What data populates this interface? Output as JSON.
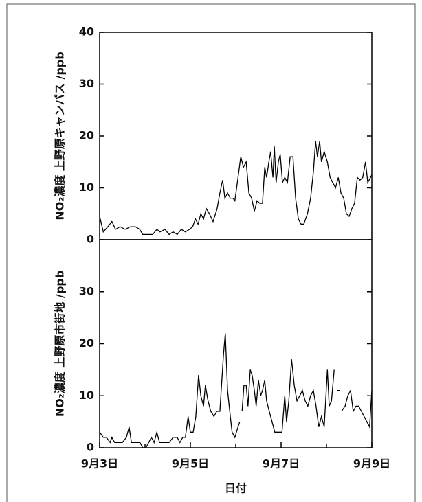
{
  "chart_data": [
    {
      "type": "line",
      "ylabel": "NO₂濃度 上野原キャンパス /ppb",
      "color": "#000000",
      "xlim": [
        3,
        9
      ],
      "ylim": [
        0,
        40
      ],
      "yticks": [
        0,
        10,
        20,
        30,
        40
      ],
      "x": [
        3.0,
        3.08,
        3.18,
        3.27,
        3.35,
        3.45,
        3.56,
        3.68,
        3.79,
        3.88,
        3.95,
        4.06,
        4.17,
        4.26,
        4.33,
        4.44,
        4.53,
        4.62,
        4.71,
        4.8,
        4.89,
        4.98,
        5.05,
        5.11,
        5.17,
        5.23,
        5.29,
        5.35,
        5.42,
        5.5,
        5.59,
        5.65,
        5.71,
        5.76,
        5.82,
        5.88,
        5.94,
        5.98,
        6.05,
        6.11,
        6.17,
        6.23,
        6.29,
        6.35,
        6.41,
        6.47,
        6.53,
        6.59,
        6.64,
        6.68,
        6.73,
        6.77,
        6.82,
        6.85,
        6.89,
        6.94,
        6.98,
        7.03,
        7.08,
        7.14,
        7.2,
        7.26,
        7.32,
        7.38,
        7.44,
        7.5,
        7.58,
        7.65,
        7.71,
        7.76,
        7.8,
        7.85,
        7.89,
        7.95,
        8.02,
        8.08,
        8.14,
        8.2,
        8.26,
        8.32,
        8.38,
        8.44,
        8.5,
        8.56,
        8.62,
        8.68,
        8.74,
        8.8,
        8.86,
        8.91,
        9.0
      ],
      "values": [
        4.5,
        1.5,
        2.5,
        3.5,
        2,
        2.5,
        2,
        2.5,
        2.5,
        2,
        1,
        1,
        1,
        2,
        1.5,
        2,
        1,
        1.5,
        1,
        2,
        1.5,
        2,
        2.5,
        4,
        3,
        5,
        4,
        6,
        5,
        3.5,
        6,
        9,
        11.5,
        8,
        9,
        8,
        8,
        7.5,
        12,
        16,
        14,
        15,
        9,
        8,
        5.5,
        7.5,
        7,
        7,
        14,
        12,
        15,
        17,
        12,
        18,
        11,
        15,
        16.5,
        11,
        12,
        11,
        16,
        16,
        8,
        4,
        3,
        3,
        5,
        8,
        13,
        19,
        16,
        19,
        15,
        17,
        15,
        12,
        11,
        10,
        12,
        9,
        8,
        5,
        4.5,
        6,
        7,
        12,
        11.5,
        12,
        15,
        11,
        12.5
      ]
    },
    {
      "type": "line",
      "ylabel": "NO₂濃度 上野原市街地 /ppb",
      "xlabel": "日付",
      "color": "#000000",
      "xlim": [
        3,
        9
      ],
      "ylim": [
        0,
        40
      ],
      "yticks": [
        0,
        10,
        20,
        30
      ],
      "xticks": [
        {
          "value": 3,
          "label": "9月3日"
        },
        {
          "value": 5,
          "label": "9月5日"
        },
        {
          "value": 7,
          "label": "9月7日"
        },
        {
          "value": 9,
          "label": "9月9日"
        }
      ],
      "xminorticks": [
        4,
        6,
        8
      ],
      "x": [
        3.0,
        3.08,
        3.15,
        3.23,
        3.27,
        3.33,
        3.41,
        3.5,
        3.59,
        3.65,
        3.7,
        3.77,
        3.83,
        3.89,
        3.95,
        4.02,
        4.08,
        4.14,
        4.2,
        4.26,
        4.32,
        4.38,
        4.44,
        4.53,
        4.62,
        4.71,
        4.77,
        4.83,
        4.89,
        4.95,
        5.0,
        5.06,
        5.12,
        5.18,
        5.23,
        5.29,
        5.33,
        5.39,
        5.45,
        5.52,
        5.58,
        5.65,
        5.73,
        5.77,
        5.82,
        5.88,
        5.92,
        5.98,
        6.05,
        6.09,
        6.1,
        6.14,
        6.18,
        6.23,
        6.27,
        6.32,
        6.36,
        6.41,
        6.45,
        6.5,
        6.55,
        6.59,
        6.64,
        6.68,
        6.74,
        6.8,
        6.86,
        6.94,
        7.02,
        7.08,
        7.12,
        7.17,
        7.23,
        7.29,
        7.35,
        7.41,
        7.47,
        7.53,
        7.59,
        7.65,
        7.71,
        7.77,
        7.83,
        7.89,
        7.95,
        8.02,
        8.06,
        8.11,
        8.17,
        8.2,
        8.23,
        8.29,
        8.31,
        8.33,
        8.41,
        8.47,
        8.53,
        8.59,
        8.65,
        8.71,
        8.77,
        8.83,
        8.89,
        8.95,
        9.0
      ],
      "values": [
        3,
        2,
        2,
        1,
        2,
        1,
        1,
        1,
        2,
        4,
        1,
        1,
        1,
        1,
        0,
        0,
        1,
        2,
        1,
        3,
        1,
        1,
        1,
        1,
        2,
        2,
        1,
        2,
        2,
        6,
        3,
        3,
        6,
        14,
        10,
        8,
        12,
        9,
        7,
        6,
        7,
        7,
        18,
        22,
        11,
        6,
        3,
        2,
        4,
        5,
        null,
        7,
        12,
        12,
        8,
        15,
        14,
        11,
        8,
        13,
        10,
        11,
        13,
        9,
        7,
        5,
        3,
        3,
        3,
        10,
        5,
        9,
        17,
        12,
        9,
        10,
        11,
        9,
        8,
        10,
        11,
        8,
        4,
        6,
        4,
        15,
        8,
        9,
        15,
        null,
        11,
        11,
        null,
        7,
        8,
        10,
        11,
        7,
        8,
        8,
        7,
        6,
        5,
        4,
        11
      ]
    }
  ]
}
